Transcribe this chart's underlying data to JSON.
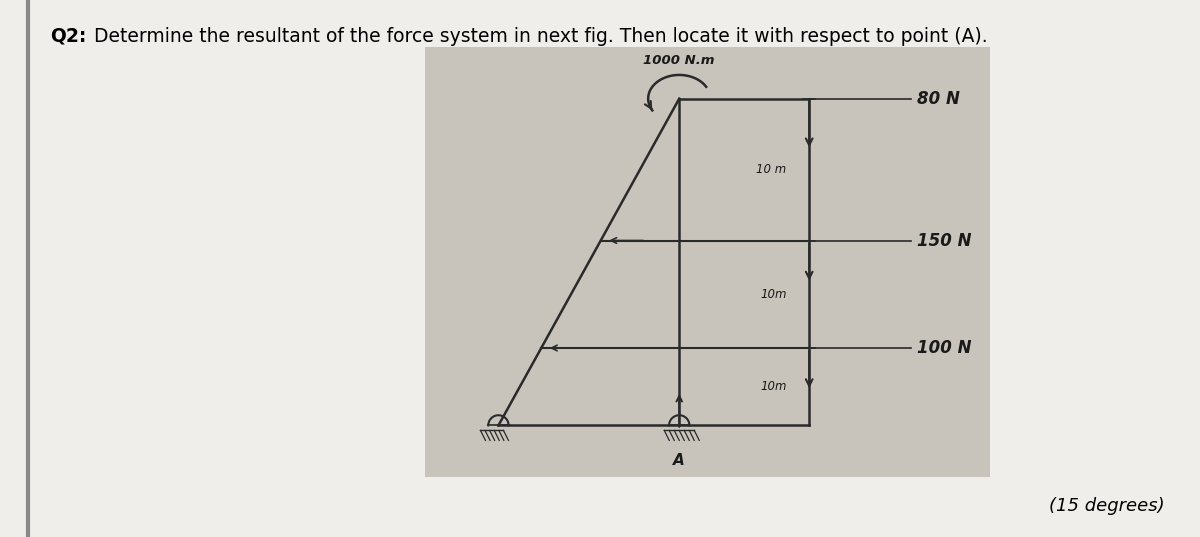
{
  "title_bold": "Q2:",
  "title_rest": " Determine the resultant of the force system in next fig. Then locate it with respect to point (A).",
  "subtitle": "(15 degrees)",
  "bg_color": "#f0eeea",
  "page_bg": "#f0eeea",
  "diagram_bg": "#c8c4bc",
  "title_fontsize": 13.5,
  "subtitle_fontsize": 13,
  "moment_label": "1000 N.m",
  "force1_label": "80 N",
  "force2_label": "150 N",
  "force3_label": "100 N",
  "dist1_label": "10 m",
  "dist2_label": "10m",
  "dist3_label": "10m",
  "pointA_label": "A",
  "line_color": "#2a2a2a",
  "text_color": "#1a1a1a"
}
